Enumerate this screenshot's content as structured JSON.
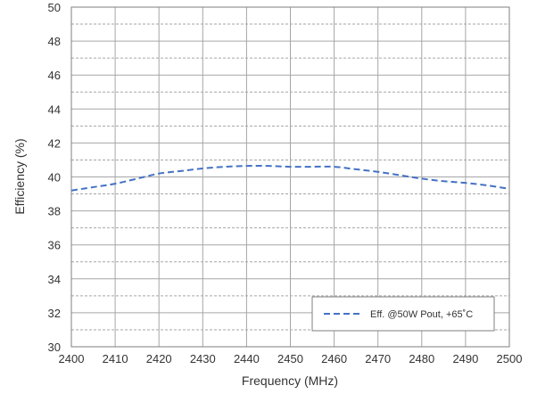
{
  "chart_data": {
    "type": "line",
    "title": "",
    "xlabel": "Frequency (MHz)",
    "ylabel": "Efficiency (%)",
    "xlim": [
      2400,
      2500
    ],
    "ylim": [
      30,
      50
    ],
    "x_ticks": [
      "2400",
      "2410",
      "2420",
      "2430",
      "2440",
      "2450",
      "2460",
      "2470",
      "2480",
      "2490",
      "2500"
    ],
    "y_ticks": [
      "30",
      "32",
      "34",
      "36",
      "38",
      "40",
      "42",
      "44",
      "46",
      "48",
      "50"
    ],
    "grid": true,
    "legend_position": "bottom-right",
    "series": [
      {
        "name": "Eff. @50W Pout, +65˚C",
        "color": "#4472C4",
        "line_style": "dashed",
        "x": [
          2400,
          2405,
          2410,
          2415,
          2420,
          2425,
          2430,
          2435,
          2440,
          2445,
          2450,
          2455,
          2460,
          2465,
          2470,
          2475,
          2480,
          2485,
          2490,
          2495,
          2500
        ],
        "values": [
          39.2,
          39.4,
          39.6,
          39.9,
          40.2,
          40.35,
          40.5,
          40.6,
          40.65,
          40.65,
          40.6,
          40.6,
          40.6,
          40.45,
          40.3,
          40.1,
          39.9,
          39.75,
          39.65,
          39.5,
          39.3
        ]
      }
    ]
  }
}
